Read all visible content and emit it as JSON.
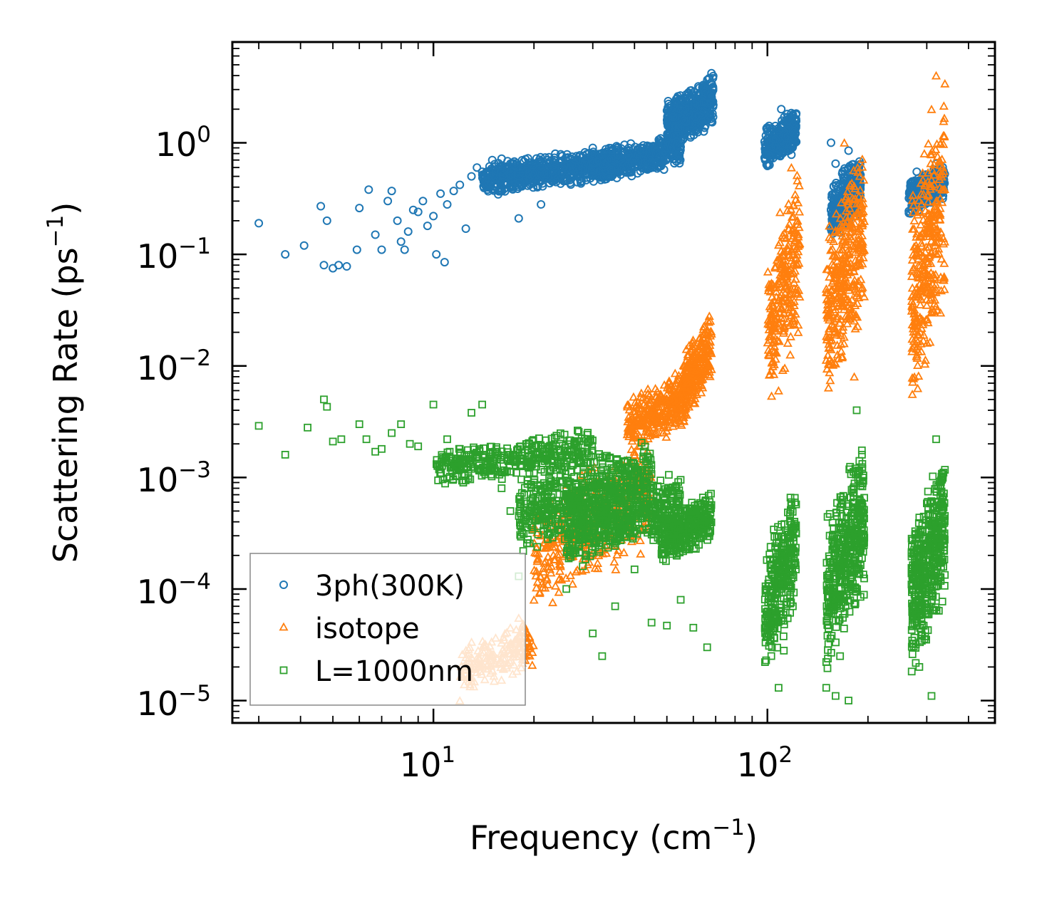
{
  "chart_data": {
    "type": "scatter",
    "title": "",
    "xlabel": "Frequency (cm",
    "xlabel_sup": "−1",
    "xlabel_end": ")",
    "ylabel": "Scattering Rate (ps",
    "ylabel_sup": "−1",
    "ylabel_end": ")",
    "xscale": "log",
    "yscale": "log",
    "xlim": [
      2.5,
      480
    ],
    "ylim": [
      6.3e-06,
      8.0
    ],
    "legend_position": "lower-left",
    "x_ticks": [
      {
        "value": 10,
        "base": "10",
        "exp": "1"
      },
      {
        "value": 100,
        "base": "10",
        "exp": "2"
      }
    ],
    "y_ticks": [
      {
        "value": 1,
        "base": "10",
        "exp": "0"
      },
      {
        "value": 0.1,
        "base": "10",
        "exp": "−1"
      },
      {
        "value": 0.01,
        "base": "10",
        "exp": "−2"
      },
      {
        "value": 0.001,
        "base": "10",
        "exp": "−3"
      },
      {
        "value": 0.0001,
        "base": "10",
        "exp": "−4"
      },
      {
        "value": 1e-05,
        "base": "10",
        "exp": "−5"
      }
    ],
    "series": [
      {
        "name": "3ph(300K)",
        "marker": "circle",
        "color": "#1f77b4",
        "points": [
          [
            3.0,
            0.19
          ],
          [
            3.6,
            0.1
          ],
          [
            4.1,
            0.12
          ],
          [
            4.6,
            0.27
          ],
          [
            4.7,
            0.08
          ],
          [
            4.8,
            0.2
          ],
          [
            5.0,
            0.075
          ],
          [
            5.2,
            0.08
          ],
          [
            5.5,
            0.078
          ],
          [
            5.9,
            0.11
          ],
          [
            6.0,
            0.26
          ],
          [
            6.4,
            0.38
          ],
          [
            6.7,
            0.15
          ],
          [
            7.0,
            0.11
          ],
          [
            7.3,
            0.3
          ],
          [
            7.5,
            0.37
          ],
          [
            7.8,
            0.2
          ],
          [
            8.0,
            0.13
          ],
          [
            8.2,
            0.11
          ],
          [
            8.4,
            0.16
          ],
          [
            8.7,
            0.25
          ],
          [
            9.0,
            0.24
          ],
          [
            9.3,
            0.3
          ],
          [
            9.6,
            0.18
          ],
          [
            10.0,
            0.22
          ],
          [
            10.2,
            0.1
          ],
          [
            10.5,
            0.35
          ],
          [
            10.8,
            0.085
          ],
          [
            11.0,
            0.28
          ],
          [
            11.5,
            0.37
          ],
          [
            12.0,
            0.42
          ],
          [
            12.5,
            0.17
          ],
          [
            13.0,
            0.5
          ],
          [
            13.5,
            0.6
          ],
          [
            14.0,
            0.55
          ],
          [
            14.5,
            0.42
          ],
          [
            15.0,
            0.7
          ],
          [
            15.5,
            0.5
          ],
          [
            16.0,
            0.72
          ],
          [
            17.0,
            0.65
          ],
          [
            17.5,
            0.45
          ],
          [
            18.0,
            0.21
          ],
          [
            19.0,
            0.55
          ],
          [
            20.0,
            0.6
          ],
          [
            21.0,
            0.28
          ],
          [
            22.0,
            0.7
          ],
          [
            24.0,
            0.62
          ],
          [
            26.0,
            0.75
          ],
          [
            28.0,
            0.52
          ],
          [
            30.0,
            0.9
          ],
          [
            32.0,
            0.65
          ],
          [
            35.0,
            0.82
          ],
          [
            38.0,
            0.7
          ],
          [
            42.0,
            0.6
          ],
          [
            45.0,
            0.85
          ],
          [
            48.0,
            1.0
          ],
          [
            52.0,
            1.3
          ],
          [
            56.0,
            1.7
          ],
          [
            60.0,
            2.2
          ],
          [
            64.0,
            3.0
          ],
          [
            67.0,
            3.8
          ],
          [
            68.0,
            4.2
          ],
          [
            100.0,
            0.62
          ],
          [
            103.0,
            0.85
          ],
          [
            106.0,
            1.2
          ],
          [
            110.0,
            2.0
          ],
          [
            115.0,
            1.6
          ],
          [
            118.0,
            0.78
          ],
          [
            155.0,
            1.0
          ],
          [
            160.0,
            0.65
          ],
          [
            168.0,
            0.55
          ],
          [
            175.0,
            0.85
          ],
          [
            180.0,
            0.5
          ],
          [
            185.0,
            0.3
          ],
          [
            190.0,
            0.42
          ],
          [
            270.0,
            0.25
          ],
          [
            280.0,
            0.55
          ],
          [
            290.0,
            0.35
          ],
          [
            300.0,
            0.5
          ],
          [
            320.0,
            0.65
          ],
          [
            335.0,
            0.55
          ]
        ],
        "clusters": [
          {
            "x": [
              14,
              35
            ],
            "y": [
              0.32,
              0.95
            ],
            "n": 650
          },
          {
            "x": [
              30,
              55
            ],
            "y": [
              0.42,
              1.25
            ],
            "n": 450
          },
          {
            "x": [
              50,
              69
            ],
            "y": [
              0.8,
              4.2
            ],
            "n": 450
          },
          {
            "x": [
              98,
              122
            ],
            "y": [
              0.55,
              2.1
            ],
            "n": 280
          },
          {
            "x": [
              155,
              190
            ],
            "y": [
              0.12,
              0.85
            ],
            "n": 320
          },
          {
            "x": [
              265,
              340
            ],
            "y": [
              0.22,
              0.66
            ],
            "n": 280
          }
        ]
      },
      {
        "name": "isotope",
        "marker": "triangle",
        "color": "#ff7f0e",
        "points": [
          [
            12.0,
            1e-05
          ],
          [
            13.0,
            1.5e-05
          ],
          [
            14.0,
            2e-05
          ],
          [
            15.0,
            2.6e-05
          ],
          [
            16.0,
            3.3e-05
          ],
          [
            17.0,
            4.5e-05
          ],
          [
            18.0,
            5.5e-05
          ],
          [
            20.0,
            8e-05
          ],
          [
            22.0,
            0.00011
          ],
          [
            24.0,
            0.00016
          ],
          [
            26.0,
            0.00023
          ],
          [
            28.0,
            0.00035
          ],
          [
            30.0,
            0.0005
          ],
          [
            33.0,
            0.0008
          ],
          [
            36.0,
            0.0011
          ],
          [
            40.0,
            0.0016
          ],
          [
            45.0,
            0.0025
          ],
          [
            50.0,
            0.004
          ],
          [
            55.0,
            0.006
          ],
          [
            58.0,
            0.009
          ],
          [
            63.0,
            0.015
          ],
          [
            67.0,
            0.028
          ],
          [
            105.0,
            0.015
          ],
          [
            108.0,
            0.006
          ],
          [
            112.0,
            0.1
          ],
          [
            118.0,
            0.6
          ],
          [
            165.0,
            0.05
          ],
          [
            170.0,
            1.0
          ],
          [
            175.0,
            0.3
          ],
          [
            182.0,
            0.008
          ],
          [
            275.0,
            0.015
          ],
          [
            295.0,
            0.8
          ],
          [
            310.0,
            2.0
          ],
          [
            320.0,
            4.0
          ],
          [
            330.0,
            0.03
          ]
        ],
        "clusters": [
          {
            "x": [
              12,
              20
            ],
            "y": [
              1e-05,
              6e-05
            ],
            "n": 180
          },
          {
            "x": [
              20,
              45
            ],
            "y": [
              6e-05,
              0.0025
            ],
            "n": 420
          },
          {
            "x": [
              38,
              58
            ],
            "y": [
              0.0015,
              0.01
            ],
            "n": 320
          },
          {
            "x": [
              56,
              68
            ],
            "y": [
              0.003,
              0.03
            ],
            "n": 260
          },
          {
            "x": [
              100,
              125
            ],
            "y": [
              0.003,
              0.9
            ],
            "n": 260
          },
          {
            "x": [
              150,
              195
            ],
            "y": [
              0.004,
              1.1
            ],
            "n": 340
          },
          {
            "x": [
              270,
              340
            ],
            "y": [
              0.003,
              4.2
            ],
            "n": 320
          }
        ]
      },
      {
        "name": "L=1000nm",
        "marker": "square",
        "color": "#2ca02c",
        "points": [
          [
            3.0,
            0.0029
          ],
          [
            3.6,
            0.0016
          ],
          [
            4.2,
            0.0028
          ],
          [
            4.7,
            0.005
          ],
          [
            4.8,
            0.0043
          ],
          [
            5.0,
            0.0021
          ],
          [
            5.3,
            0.0022
          ],
          [
            6.0,
            0.003
          ],
          [
            6.3,
            0.0022
          ],
          [
            6.7,
            0.0017
          ],
          [
            7.0,
            0.0018
          ],
          [
            7.5,
            0.0025
          ],
          [
            8.0,
            0.003
          ],
          [
            8.5,
            0.002
          ],
          [
            9.0,
            0.0019
          ],
          [
            10.0,
            0.0045
          ],
          [
            11.0,
            0.0022
          ],
          [
            12.0,
            0.0018
          ],
          [
            13.0,
            0.0038
          ],
          [
            14.0,
            0.0045
          ],
          [
            15.0,
            0.0012
          ],
          [
            16.0,
            0.0008
          ],
          [
            17.0,
            0.0005
          ],
          [
            18.0,
            0.00013
          ],
          [
            20.0,
            0.0011
          ],
          [
            22.0,
            0.00028
          ],
          [
            25.0,
            0.0001
          ],
          [
            28.0,
            0.00016
          ],
          [
            30.0,
            4e-05
          ],
          [
            32.0,
            2.5e-05
          ],
          [
            35.0,
            7e-05
          ],
          [
            40.0,
            0.00015
          ],
          [
            45.0,
            5e-05
          ],
          [
            50.0,
            4.7e-05
          ],
          [
            55.0,
            8e-05
          ],
          [
            60.0,
            4.5e-05
          ],
          [
            66.0,
            3e-05
          ],
          [
            100.0,
            5e-05
          ],
          [
            105.0,
            0.00015
          ],
          [
            108.0,
            1.3e-05
          ],
          [
            112.0,
            2.8e-05
          ],
          [
            118.0,
            0.0006
          ],
          [
            150.0,
            1.3e-05
          ],
          [
            160.0,
            1.1e-05
          ],
          [
            165.0,
            2.5e-05
          ],
          [
            175.0,
            1e-05
          ],
          [
            185.0,
            0.004
          ],
          [
            270.0,
            0.00011
          ],
          [
            285.0,
            2e-05
          ],
          [
            310.0,
            1.1e-05
          ],
          [
            320.0,
            0.0022
          ]
        ],
        "clusters": [
          {
            "x": [
              10,
              30
            ],
            "y": [
              0.0008,
              0.0028
            ],
            "n": 350
          },
          {
            "x": [
              18,
              45
            ],
            "y": [
              0.0002,
              0.0025
            ],
            "n": 550
          },
          {
            "x": [
              25,
              55
            ],
            "y": [
              0.00015,
              0.0012
            ],
            "n": 450
          },
          {
            "x": [
              48,
              68
            ],
            "y": [
              0.00015,
              0.0008
            ],
            "n": 320
          },
          {
            "x": [
              98,
              122
            ],
            "y": [
              1.5e-05,
              0.001
            ],
            "n": 300
          },
          {
            "x": [
              150,
              195
            ],
            "y": [
              1.5e-05,
              0.0025
            ],
            "n": 420
          },
          {
            "x": [
              270,
              340
            ],
            "y": [
              1.5e-05,
              0.002
            ],
            "n": 420
          }
        ]
      }
    ]
  }
}
